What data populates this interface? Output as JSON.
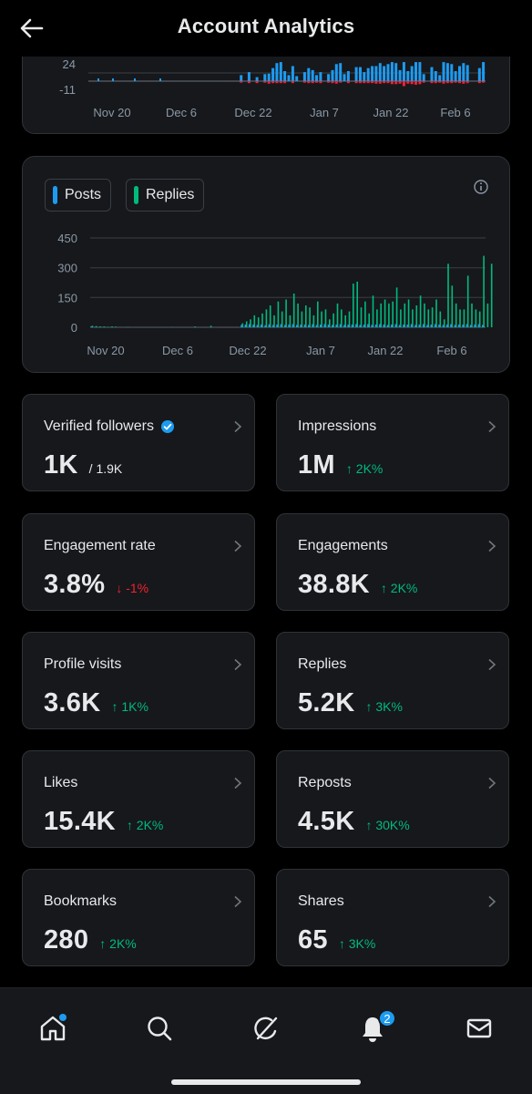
{
  "header": {
    "title": "Account Analytics"
  },
  "chart_data": [
    {
      "type": "bar",
      "yticks": [
        "24",
        "-11"
      ],
      "xticks": [
        "Nov 20",
        "Dec 6",
        "Dec 22",
        "Jan 7",
        "Jan 22",
        "Feb 6"
      ],
      "series": [
        {
          "color": "#1d9bf0",
          "values": [
            0,
            0,
            0,
            0,
            0,
            0,
            0,
            0,
            0,
            0,
            0,
            0,
            0,
            0,
            0,
            0,
            0,
            0,
            0,
            0,
            0,
            0,
            0,
            0,
            0,
            0,
            0,
            0,
            0,
            0,
            0,
            0,
            0,
            0,
            0,
            0,
            0,
            0,
            12,
            0,
            18,
            0,
            8,
            0,
            14,
            15,
            26,
            36,
            38,
            20,
            12,
            30,
            10,
            0,
            18,
            26,
            22,
            12,
            18,
            0,
            14,
            22,
            34,
            36,
            14,
            20,
            0,
            28,
            28,
            18,
            26,
            30,
            30,
            36,
            30,
            34,
            38,
            36,
            22,
            38,
            20,
            30,
            38,
            38,
            14,
            0,
            28,
            20,
            12,
            38,
            36,
            34,
            20,
            30,
            36,
            32,
            0,
            0,
            26,
            38
          ]
        },
        {
          "color": "#f4212e",
          "values": [
            0,
            0,
            0,
            0,
            0,
            0,
            0,
            0,
            0,
            0,
            0,
            0,
            0,
            0,
            0,
            0,
            0,
            0,
            0,
            0,
            0,
            0,
            0,
            0,
            0,
            0,
            0,
            0,
            0,
            0,
            0,
            0,
            0,
            0,
            0,
            0,
            0,
            0,
            -3,
            0,
            -4,
            0,
            -4,
            0,
            -3,
            -5,
            -4,
            -4,
            -4,
            -4,
            0,
            -4,
            0,
            0,
            -3,
            -4,
            -4,
            -3,
            -4,
            0,
            -3,
            -4,
            -5,
            -3,
            0,
            -4,
            0,
            -4,
            -4,
            -4,
            -4,
            -4,
            -5,
            -5,
            -4,
            -4,
            -6,
            -6,
            -5,
            -10,
            -5,
            -6,
            -7,
            -6,
            -3,
            0,
            -4,
            -4,
            -3,
            -5,
            -4,
            -4,
            -3,
            -4,
            -5,
            -4,
            0,
            0,
            -4,
            -3
          ]
        }
      ]
    },
    {
      "type": "bar",
      "yticks": [
        "450",
        "300",
        "150",
        "0"
      ],
      "ylim": [
        0,
        450
      ],
      "xticks": [
        "Nov 20",
        "Dec 6",
        "Dec 22",
        "Jan 7",
        "Jan 22",
        "Feb 6"
      ],
      "series": [
        {
          "name": "Posts",
          "color": "#1d9bf0",
          "values": [
            4,
            2,
            1,
            1,
            1,
            1,
            1,
            0,
            0,
            0,
            0,
            0,
            0,
            0,
            0,
            0,
            0,
            0,
            0,
            0,
            0,
            0,
            0,
            0,
            0,
            0,
            0,
            0,
            0,
            0,
            0,
            0,
            0,
            0,
            0,
            0,
            0,
            0,
            12,
            14,
            16,
            14,
            12,
            14,
            10,
            15,
            12,
            14,
            16,
            12,
            14,
            16,
            12,
            14,
            14,
            12,
            16,
            12,
            14,
            16,
            14,
            12,
            14,
            16,
            12,
            14,
            14,
            16,
            12,
            14,
            16,
            12,
            14,
            16,
            14,
            12,
            14,
            16,
            12,
            14,
            14,
            16,
            12,
            14,
            16,
            12,
            14,
            16,
            14,
            12,
            14,
            16,
            12,
            14,
            14,
            16,
            12,
            14,
            16,
            12
          ]
        },
        {
          "name": "Replies",
          "color": "#00ba7c",
          "values": [
            8,
            6,
            4,
            4,
            2,
            4,
            3,
            0,
            0,
            2,
            0,
            0,
            0,
            0,
            0,
            0,
            0,
            0,
            0,
            0,
            2,
            0,
            0,
            0,
            0,
            0,
            4,
            0,
            0,
            0,
            8,
            0,
            0,
            0,
            0,
            0,
            0,
            0,
            20,
            30,
            40,
            60,
            50,
            70,
            90,
            110,
            60,
            130,
            80,
            140,
            60,
            170,
            120,
            80,
            110,
            100,
            60,
            130,
            80,
            90,
            40,
            70,
            120,
            90,
            60,
            80,
            220,
            230,
            100,
            130,
            70,
            160,
            90,
            120,
            140,
            120,
            130,
            200,
            90,
            120,
            140,
            90,
            110,
            160,
            120,
            90,
            100,
            140,
            80,
            40,
            320,
            210,
            120,
            90,
            90,
            260,
            120,
            90,
            80,
            360,
            120,
            320
          ]
        }
      ]
    }
  ],
  "legend": {
    "posts_label": "Posts",
    "replies_label": "Replies"
  },
  "metrics": [
    {
      "label": "Verified followers",
      "value": "1K",
      "sub": "/ 1.9K",
      "change": "",
      "direction": ""
    },
    {
      "label": "Impressions",
      "value": "1M",
      "change": "↑ 2K%",
      "direction": "up"
    },
    {
      "label": "Engagement rate",
      "value": "3.8%",
      "change": "↓ -1%",
      "direction": "down"
    },
    {
      "label": "Engagements",
      "value": "38.8K",
      "change": "↑ 2K%",
      "direction": "up"
    },
    {
      "label": "Profile visits",
      "value": "3.6K",
      "change": "↑ 1K%",
      "direction": "up"
    },
    {
      "label": "Replies",
      "value": "5.2K",
      "change": "↑ 3K%",
      "direction": "up"
    },
    {
      "label": "Likes",
      "value": "15.4K",
      "change": "↑ 2K%",
      "direction": "up"
    },
    {
      "label": "Reposts",
      "value": "4.5K",
      "change": "↑ 30K%",
      "direction": "up"
    },
    {
      "label": "Bookmarks",
      "value": "280",
      "change": "↑ 2K%",
      "direction": "up"
    },
    {
      "label": "Shares",
      "value": "65",
      "change": "↑ 3K%",
      "direction": "up"
    }
  ],
  "tabbar": {
    "items": [
      "home-icon",
      "search-icon",
      "grok-icon",
      "notifications-icon",
      "messages-icon"
    ],
    "notifications_badge": "2"
  },
  "colors": {
    "accent": "#1d9bf0",
    "positive": "#00ba7c",
    "negative": "#f4212e",
    "card": "#16181c",
    "border": "#2f3336"
  }
}
